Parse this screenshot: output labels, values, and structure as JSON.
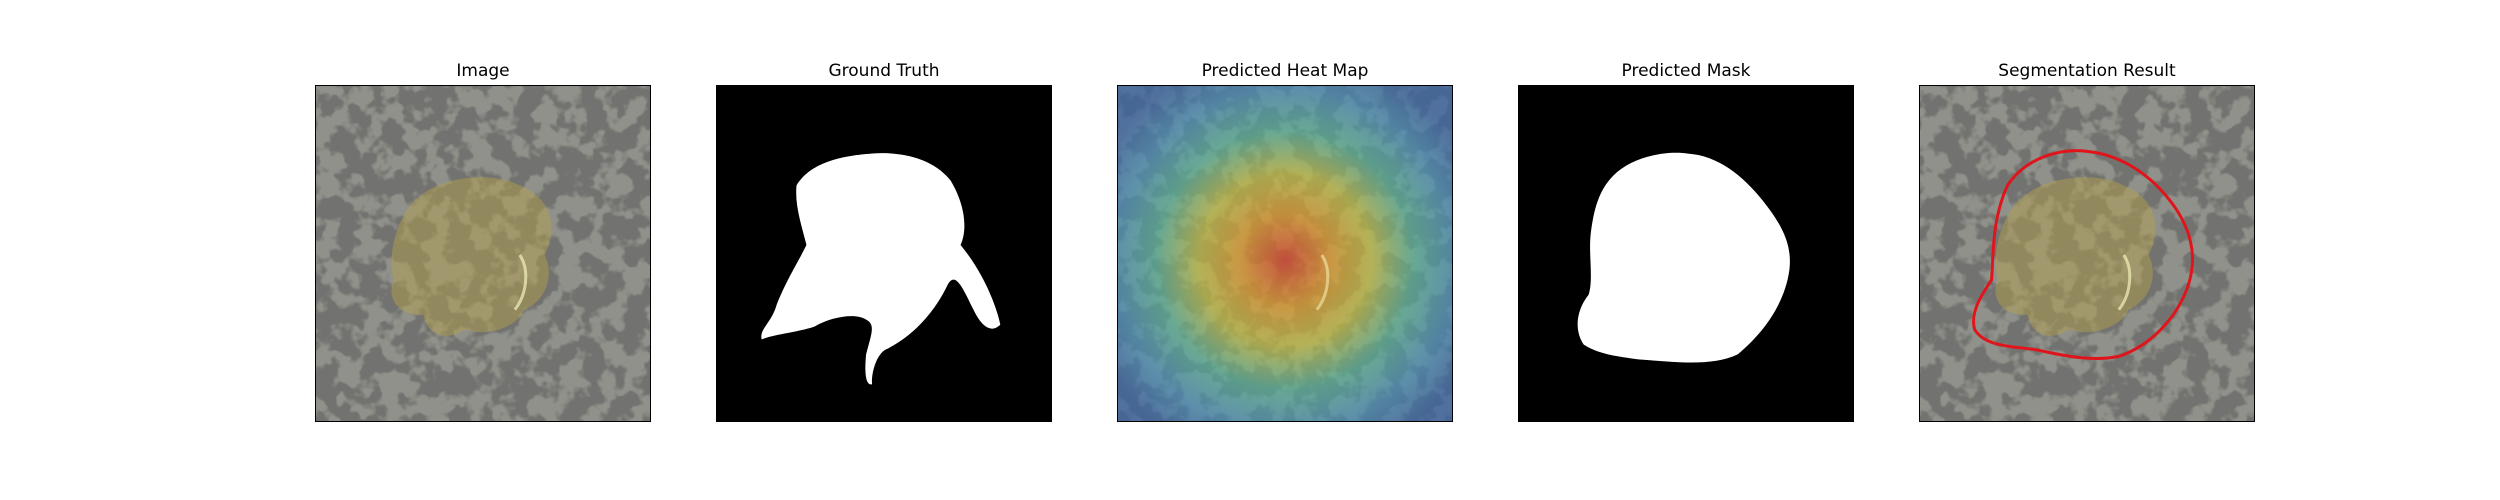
{
  "figure": {
    "panels": [
      {
        "title": "Image"
      },
      {
        "title": "Ground Truth"
      },
      {
        "title": "Predicted Heat Map"
      },
      {
        "title": "Predicted Mask"
      },
      {
        "title": "Segmentation Result"
      }
    ]
  },
  "colors": {
    "background": "#ffffff",
    "mask_foreground": "#ffffff",
    "mask_background": "#000000",
    "contour": "#e0141b",
    "texture_base": "#8f918a",
    "texture_spot": "#2d2c2a"
  }
}
